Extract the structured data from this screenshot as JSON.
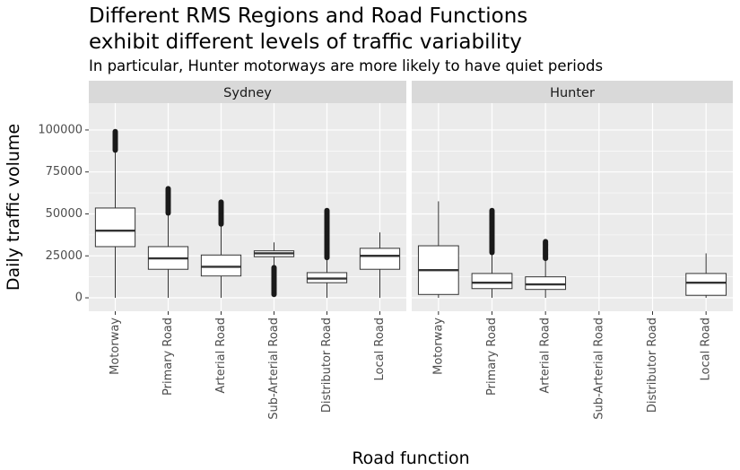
{
  "chart_data": {
    "type": "boxplot",
    "title_lines": [
      "Different RMS Regions and Road Functions",
      "exhibit different levels of traffic variability"
    ],
    "subtitle": "In particular, Hunter motorways are more likely to have quiet periods",
    "xlabel": "Road function",
    "ylabel": "Daily traffic volume",
    "ylim": [
      -8000,
      116000
    ],
    "yticks": [
      0,
      25000,
      50000,
      75000,
      100000
    ],
    "ytick_labels": [
      "0",
      "25000",
      "50000",
      "75000",
      "100000"
    ],
    "categories": [
      "Motorway",
      "Primary Road",
      "Arterial Road",
      "Sub-Arterial Road",
      "Distributor Road",
      "Local Road"
    ],
    "grid": true,
    "panels": [
      {
        "name": "Sydney",
        "boxes": [
          {
            "category": "Motorway",
            "min": 0,
            "q1": 30500,
            "median": 40000,
            "q3": 53500,
            "max": 88000,
            "outliers_from": 88000,
            "outliers_to": 99000
          },
          {
            "category": "Primary Road",
            "min": 0,
            "q1": 17000,
            "median": 23500,
            "q3": 30500,
            "max": 50500,
            "outliers_from": 50500,
            "outliers_to": 65000
          },
          {
            "category": "Arterial Road",
            "min": 0,
            "q1": 13000,
            "median": 18500,
            "q3": 25500,
            "max": 44000,
            "outliers_from": 44000,
            "outliers_to": 57000
          },
          {
            "category": "Sub-Arterial Road",
            "min": 19000,
            "q1": 24500,
            "median": 26500,
            "q3": 28000,
            "max": 33000,
            "outliers_from": 2000,
            "outliers_to": 18000
          },
          {
            "category": "Distributor Road",
            "min": 0,
            "q1": 9000,
            "median": 11500,
            "q3": 15000,
            "max": 24000,
            "outliers_from": 24000,
            "outliers_to": 52000
          },
          {
            "category": "Local Road",
            "min": 0,
            "q1": 17000,
            "median": 25000,
            "q3": 29500,
            "max": 39000
          }
        ]
      },
      {
        "name": "Hunter",
        "boxes": [
          {
            "category": "Motorway",
            "min": 0,
            "q1": 2000,
            "median": 16500,
            "q3": 31000,
            "max": 57500
          },
          {
            "category": "Primary Road",
            "min": 0,
            "q1": 5500,
            "median": 9000,
            "q3": 14500,
            "max": 27000,
            "outliers_from": 27000,
            "outliers_to": 52000
          },
          {
            "category": "Arterial Road",
            "min": 0,
            "q1": 5000,
            "median": 8000,
            "q3": 12500,
            "max": 23500,
            "outliers_from": 23500,
            "outliers_to": 33500
          },
          {
            "category": "Local Road",
            "min": 0,
            "q1": 1500,
            "median": 9000,
            "q3": 14500,
            "max": 26500
          }
        ]
      }
    ],
    "colors": {
      "panel_bg": "#ebebeb",
      "strip_bg": "#d9d9d9",
      "grid": "#ffffff",
      "box_fill": "#ffffff",
      "box_stroke": "#333333",
      "outlier": "#1a1a1a"
    }
  }
}
